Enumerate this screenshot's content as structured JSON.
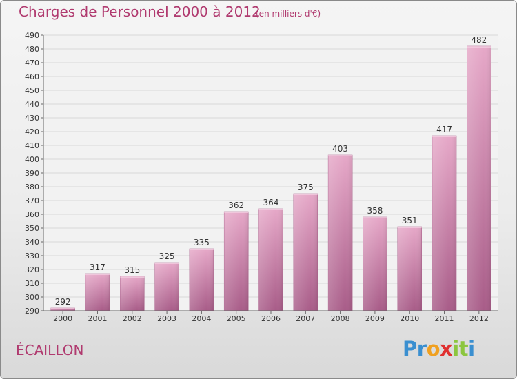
{
  "chart_data": {
    "type": "bar",
    "title": "Charges de Personnel 2000 à 2012",
    "subtitle": "(en milliers d'€)",
    "categories": [
      "2000",
      "2001",
      "2002",
      "2003",
      "2004",
      "2005",
      "2006",
      "2007",
      "2008",
      "2009",
      "2010",
      "2011",
      "2012"
    ],
    "values": [
      292,
      317,
      315,
      325,
      335,
      362,
      364,
      375,
      403,
      358,
      351,
      417,
      482
    ],
    "ylim": [
      290,
      490
    ],
    "yticks": [
      290,
      300,
      310,
      320,
      330,
      340,
      350,
      360,
      370,
      380,
      390,
      400,
      410,
      420,
      430,
      440,
      450,
      460,
      470,
      480,
      490
    ],
    "grid": true,
    "bar_color": "#d07aa8",
    "bar_color_light": "#e6a8c8",
    "bar_color_dark": "#a85c88"
  },
  "location": "ÉCAILLON",
  "logo": {
    "letters": [
      "P",
      "r",
      "o",
      "x",
      "i",
      "t",
      "i"
    ],
    "colors": [
      "#3a8fd0",
      "#3a8fd0",
      "#f0a020",
      "#e03030",
      "#8cc63f",
      "#8cc63f",
      "#3a8fd0"
    ]
  }
}
